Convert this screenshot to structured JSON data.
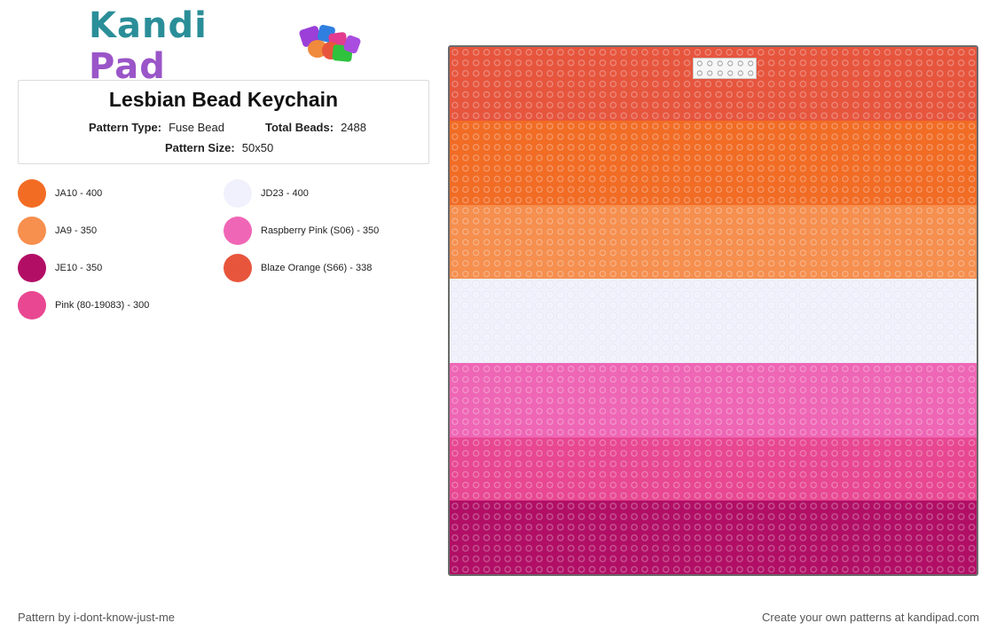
{
  "logo": {
    "part1": "Kandi",
    "part2": "Pad",
    "icon": "bead-pile-icon"
  },
  "pattern": {
    "title": "Lesbian Bead Keychain",
    "type_label": "Pattern Type:",
    "type_value": "Fuse Bead",
    "beads_label": "Total Beads:",
    "beads_value": "2488",
    "size_label": "Pattern Size:",
    "size_value": "50x50"
  },
  "palette": [
    {
      "label": "JA10 - 400",
      "color": "#f36c24"
    },
    {
      "label": "JD23 - 400",
      "color": "#f1f1fd"
    },
    {
      "label": "JA9 - 350",
      "color": "#f78f4e"
    },
    {
      "label": "Raspberry Pink (S06) - 350",
      "color": "#f066b6"
    },
    {
      "label": "JE10 - 350",
      "color": "#b20e66"
    },
    {
      "label": "Blaze Orange (S66) - 338",
      "color": "#e8553d"
    },
    {
      "label": "Pink (80-19083) - 300",
      "color": "#e94792"
    }
  ],
  "board": {
    "rows": 50,
    "stripes": [
      {
        "color": "#e8553d",
        "rows": 7
      },
      {
        "color": "#f36c24",
        "rows": 8
      },
      {
        "color": "#f78f4e",
        "rows": 7
      },
      {
        "color": "#f1f1fd",
        "rows": 8
      },
      {
        "color": "#f066b6",
        "rows": 7
      },
      {
        "color": "#e94792",
        "rows": 6
      },
      {
        "color": "#b20e66",
        "rows": 7
      }
    ]
  },
  "footer": {
    "credit": "Pattern by i-dont-know-just-me",
    "promo": "Create your own patterns at kandipad.com"
  }
}
